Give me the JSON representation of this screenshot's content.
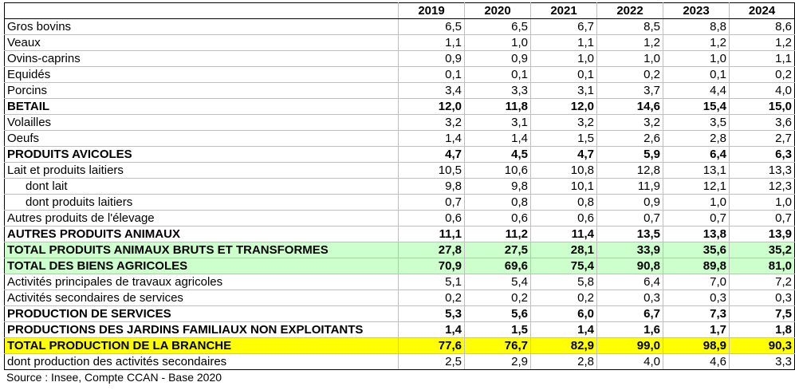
{
  "years": [
    "2019",
    "2020",
    "2021",
    "2022",
    "2023",
    "2024"
  ],
  "rows": [
    {
      "label": "Gros bovins",
      "values": [
        "6,5",
        "6,5",
        "6,7",
        "8,5",
        "8,8",
        "8,6"
      ],
      "style": ""
    },
    {
      "label": "Veaux",
      "values": [
        "1,1",
        "1,0",
        "1,1",
        "1,2",
        "1,2",
        "1,2"
      ],
      "style": ""
    },
    {
      "label": "Ovins-caprins",
      "values": [
        "0,9",
        "0,9",
        "1,0",
        "1,0",
        "1,0",
        "1,1"
      ],
      "style": ""
    },
    {
      "label": "Equidés",
      "values": [
        "0,1",
        "0,1",
        "0,1",
        "0,2",
        "0,1",
        "0,2"
      ],
      "style": ""
    },
    {
      "label": "Porcins",
      "values": [
        "3,4",
        "3,3",
        "3,1",
        "3,7",
        "4,4",
        "4,0"
      ],
      "style": ""
    },
    {
      "label": "BETAIL",
      "values": [
        "12,0",
        "11,8",
        "12,0",
        "14,6",
        "15,4",
        "15,0"
      ],
      "style": "bold"
    },
    {
      "label": "Volailles",
      "values": [
        "3,2",
        "3,1",
        "3,2",
        "3,2",
        "3,5",
        "3,6"
      ],
      "style": ""
    },
    {
      "label": "Oeufs",
      "values": [
        "1,4",
        "1,4",
        "1,5",
        "2,6",
        "2,8",
        "2,7"
      ],
      "style": ""
    },
    {
      "label": "PRODUITS AVICOLES",
      "values": [
        "4,7",
        "4,5",
        "4,7",
        "5,9",
        "6,4",
        "6,3"
      ],
      "style": "bold"
    },
    {
      "label": "Lait et produits laitiers",
      "values": [
        "10,5",
        "10,6",
        "10,8",
        "12,8",
        "13,1",
        "13,3"
      ],
      "style": ""
    },
    {
      "label": "dont lait",
      "values": [
        "9,8",
        "9,8",
        "10,1",
        "11,9",
        "12,1",
        "12,3"
      ],
      "style": "indent"
    },
    {
      "label": "dont produits laitiers",
      "values": [
        "0,7",
        "0,8",
        "0,8",
        "0,9",
        "1,0",
        "1,0"
      ],
      "style": "indent"
    },
    {
      "label": "Autres produits de l'élevage",
      "values": [
        "0,6",
        "0,6",
        "0,6",
        "0,7",
        "0,7",
        "0,7"
      ],
      "style": ""
    },
    {
      "label": "AUTRES PRODUITS ANIMAUX",
      "values": [
        "11,1",
        "11,2",
        "11,4",
        "13,5",
        "13,8",
        "13,9"
      ],
      "style": "bold"
    },
    {
      "label": "TOTAL PRODUITS ANIMAUX BRUTS ET TRANSFORMES",
      "values": [
        "27,8",
        "27,5",
        "28,1",
        "33,9",
        "35,6",
        "35,2"
      ],
      "style": "bold green"
    },
    {
      "label": "TOTAL DES BIENS AGRICOLES",
      "values": [
        "70,9",
        "69,6",
        "75,4",
        "90,8",
        "89,8",
        "81,0"
      ],
      "style": "bold green"
    },
    {
      "label": "Activités principales de travaux agricoles",
      "values": [
        "5,1",
        "5,4",
        "5,8",
        "6,4",
        "7,0",
        "7,2"
      ],
      "style": ""
    },
    {
      "label": "Activités secondaires de services",
      "values": [
        "0,2",
        "0,2",
        "0,2",
        "0,3",
        "0,3",
        "0,3"
      ],
      "style": ""
    },
    {
      "label": "PRODUCTION DE SERVICES",
      "values": [
        "5,3",
        "5,6",
        "6,0",
        "6,7",
        "7,3",
        "7,5"
      ],
      "style": "bold"
    },
    {
      "label": "PRODUCTIONS DES JARDINS FAMILIAUX NON EXPLOITANTS",
      "values": [
        "1,4",
        "1,5",
        "1,4",
        "1,6",
        "1,7",
        "1,8"
      ],
      "style": "bold"
    },
    {
      "label": "TOTAL PRODUCTION DE LA BRANCHE",
      "values": [
        "77,6",
        "76,7",
        "82,9",
        "99,0",
        "98,9",
        "90,3"
      ],
      "style": "bold yellow"
    },
    {
      "label": "dont production des activités secondaires",
      "values": [
        "2,5",
        "2,9",
        "2,8",
        "4,0",
        "4,6",
        "3,3"
      ],
      "style": ""
    }
  ],
  "source": "Source : Insee, Compte CCAN - Base 2020"
}
